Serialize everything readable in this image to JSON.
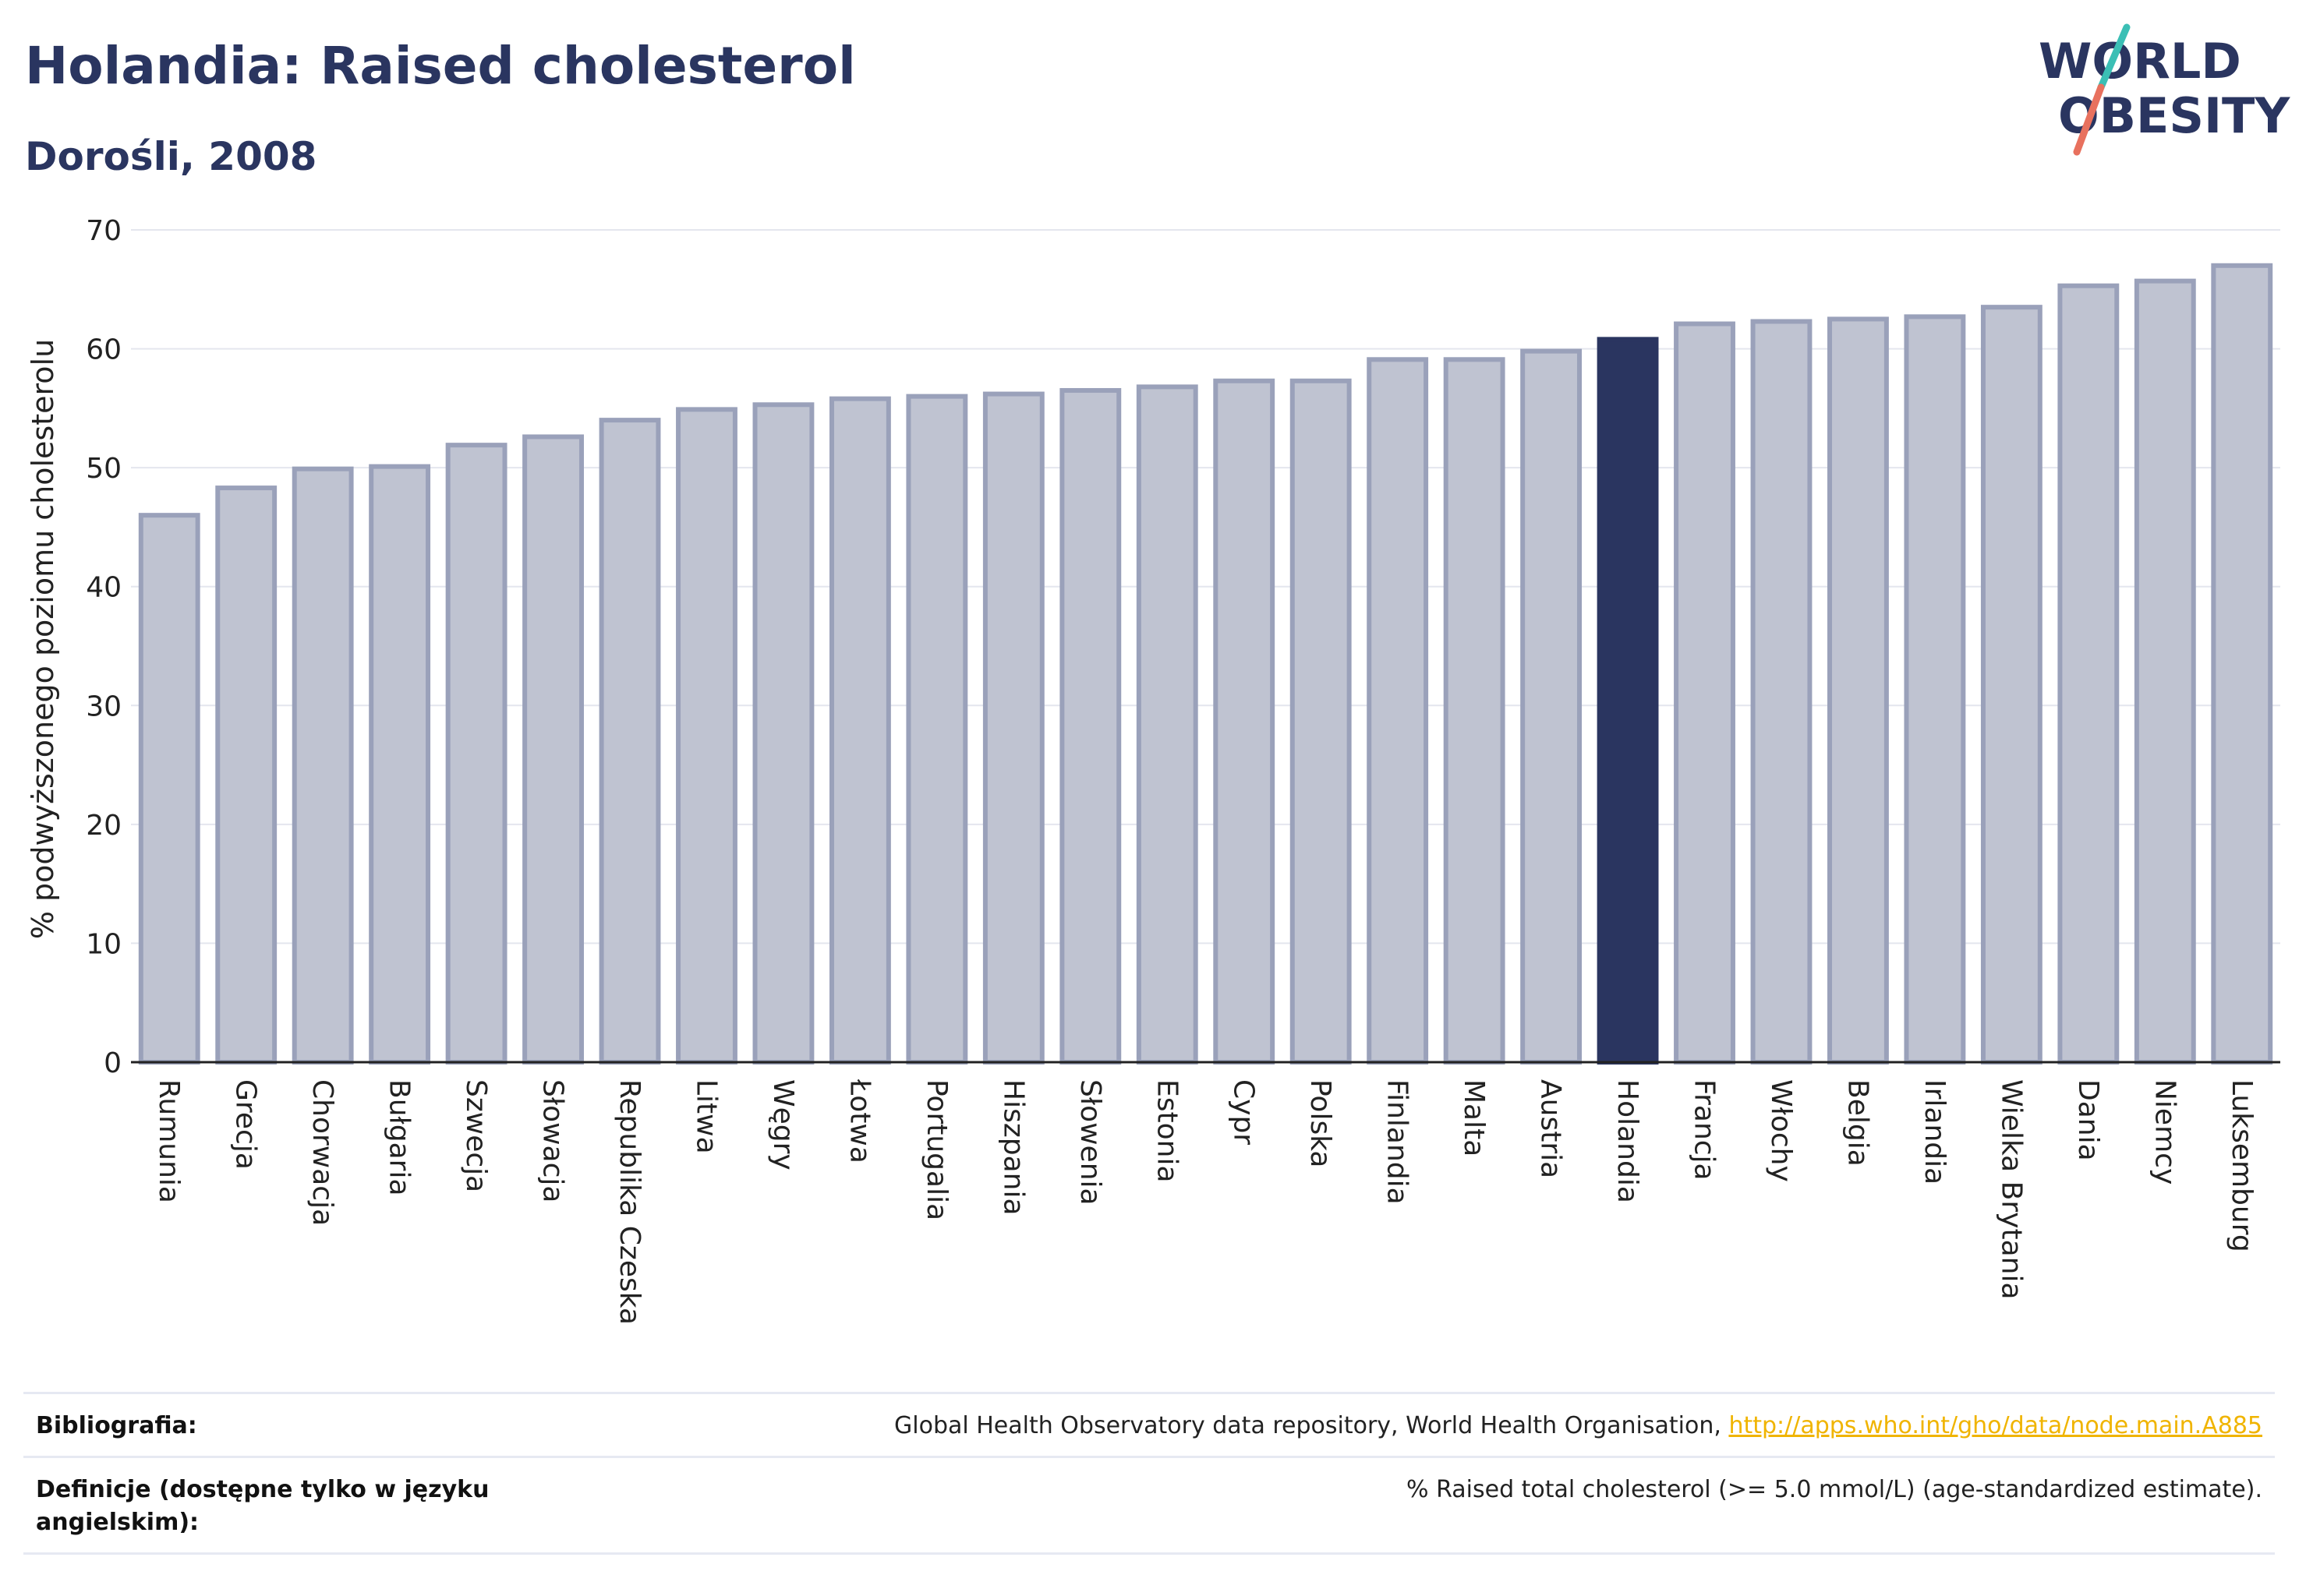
{
  "header": {
    "title": "Holandia: Raised cholesterol",
    "subtitle": "Dorośli, 2008"
  },
  "logo": {
    "line1": "WORLD",
    "line2": "OBESITY",
    "colors": {
      "text": "#2a3560",
      "slash_top": "#3bbfb5",
      "slash_bottom": "#e8715e"
    }
  },
  "colors": {
    "bar_default_fill": "#bfc3d1",
    "bar_default_stroke": "#9aa1ba",
    "bar_highlight": "#2a3560",
    "grid": "#e4e6ee",
    "axis": "#222222"
  },
  "chart_data": {
    "type": "bar",
    "ylabel": "% podwyższonego poziomu cholesterolu",
    "ylim": [
      0,
      70
    ],
    "yticks": [
      0,
      10,
      20,
      30,
      40,
      50,
      60,
      70
    ],
    "highlight": "Holandia",
    "grid": true,
    "categories": [
      "Rumunia",
      "Grecja",
      "Chorwacja",
      "Bułgaria",
      "Szwecja",
      "Słowacja",
      "Republika Czeska",
      "Litwa",
      "Węgry",
      "Łotwa",
      "Portugalia",
      "Hiszpania",
      "Słowenia",
      "Estonia",
      "Cypr",
      "Polska",
      "Finlandia",
      "Malta",
      "Austria",
      "Holandia",
      "Francja",
      "Włochy",
      "Belgia",
      "Irlandia",
      "Wielka Brytania",
      "Dania",
      "Niemcy",
      "Luksemburg"
    ],
    "values": [
      46.0,
      48.3,
      49.9,
      50.1,
      51.9,
      52.6,
      54.0,
      54.9,
      55.3,
      55.8,
      56.0,
      56.2,
      56.5,
      56.8,
      57.3,
      57.3,
      59.1,
      59.1,
      59.8,
      60.8,
      62.1,
      62.3,
      62.5,
      62.7,
      63.5,
      65.3,
      65.7,
      67.0
    ]
  },
  "footer": {
    "bibliography_label": "Bibliografia:",
    "bibliography_text": "Global Health Observatory data repository, World Health Organisation, ",
    "bibliography_link": "http://apps.who.int/gho/data/node.main.A885",
    "definitions_label_line1": "Definicje (dostępne tylko w języku",
    "definitions_label_line2": "angielskim):",
    "definitions_text": "% Raised total cholesterol (>= 5.0 mmol/L) (age-standardized estimate)."
  }
}
